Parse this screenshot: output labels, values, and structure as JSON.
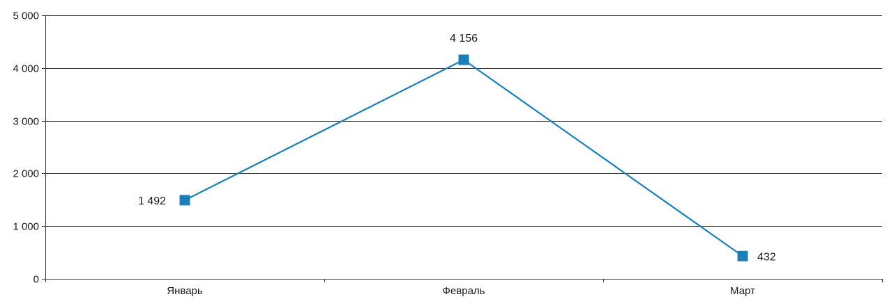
{
  "chart_data": {
    "type": "line",
    "title": "",
    "xlabel": "",
    "ylabel": "",
    "categories": [
      "Январь",
      "Февраль",
      "Март"
    ],
    "series": [
      {
        "values": [
          1492,
          4156,
          432
        ],
        "data_labels": [
          "1 492",
          "4 156",
          "432"
        ],
        "color": "#1a7fb8",
        "marker": "square"
      }
    ],
    "ylim": [
      0,
      5000
    ],
    "yticks": [
      0,
      1000,
      2000,
      3000,
      4000,
      5000
    ],
    "ytick_labels": [
      "0",
      "1 000",
      "2 000",
      "3 000",
      "4 000",
      "5 000"
    ],
    "grid": "horizontal",
    "legend": "none"
  }
}
